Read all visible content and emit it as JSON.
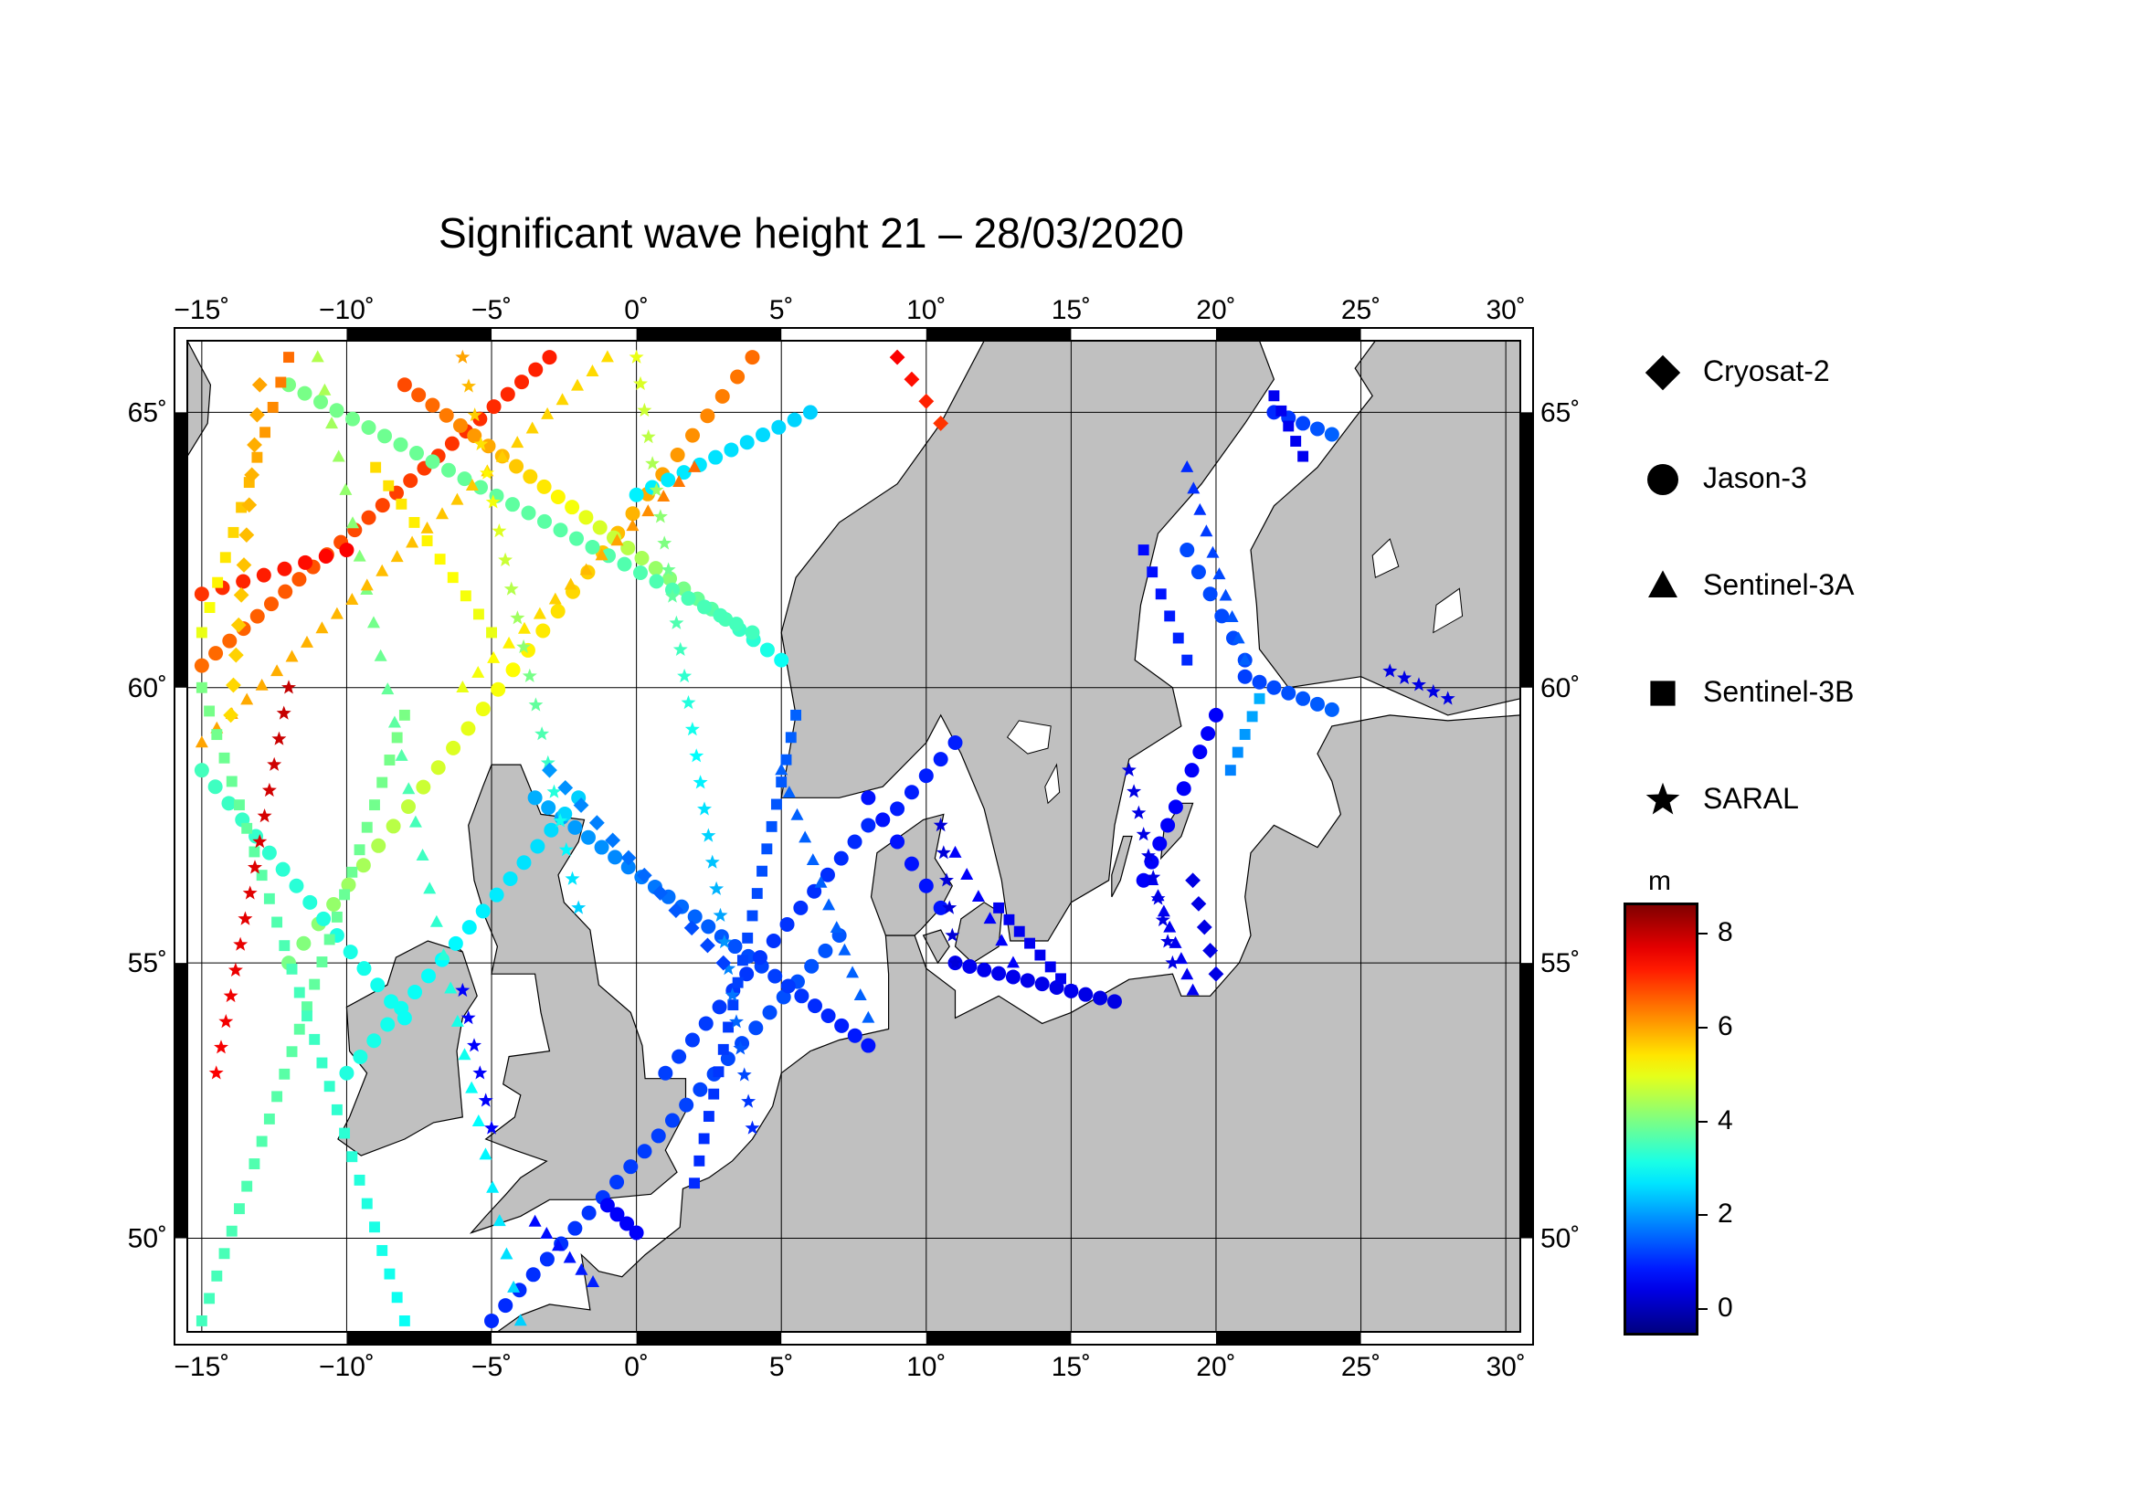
{
  "title": "Significant wave height 21 – 28/03/2020",
  "map": {
    "lon_range": [
      -15.5,
      30.5
    ],
    "lat_range": [
      48.3,
      66.3
    ],
    "lon_ticks": [
      {
        "value": -15,
        "label": "−15˚"
      },
      {
        "value": -10,
        "label": "−10˚"
      },
      {
        "value": -5,
        "label": "−5˚"
      },
      {
        "value": 0,
        "label": "0˚"
      },
      {
        "value": 5,
        "label": "5˚"
      },
      {
        "value": 10,
        "label": "10˚"
      },
      {
        "value": 15,
        "label": "15˚"
      },
      {
        "value": 20,
        "label": "20˚"
      },
      {
        "value": 25,
        "label": "25˚"
      },
      {
        "value": 30,
        "label": "30˚"
      }
    ],
    "lat_ticks": [
      {
        "value": 50,
        "label": "50˚"
      },
      {
        "value": 55,
        "label": "55˚"
      },
      {
        "value": 60,
        "label": "60˚"
      },
      {
        "value": 65,
        "label": "65˚"
      }
    ],
    "land_color": "#c0c0c0",
    "sea_color": "#ffffff",
    "grid": true
  },
  "legend": {
    "items": [
      {
        "label": "Cryosat-2",
        "symbol": "diamond"
      },
      {
        "label": "Jason-3",
        "symbol": "circle"
      },
      {
        "label": "Sentinel-3A",
        "symbol": "triangle"
      },
      {
        "label": "Sentinel-3B",
        "symbol": "square"
      },
      {
        "label": "SARAL",
        "symbol": "star"
      }
    ]
  },
  "colorbar": {
    "unit": "m",
    "min": -0.5,
    "max": 8.6,
    "ticks": [
      {
        "value": 0,
        "label": "0"
      },
      {
        "value": 2,
        "label": "2"
      },
      {
        "value": 4,
        "label": "4"
      },
      {
        "value": 6,
        "label": "6"
      },
      {
        "value": 8,
        "label": "8"
      }
    ]
  },
  "chart_data": {
    "type": "scatter",
    "variable": "Significant wave height",
    "units": "m",
    "series": [
      {
        "name": "Jason-3",
        "symbol": "circle",
        "tracks": [
          {
            "start": [
              -15,
              60.4
            ],
            "end": [
              -3,
              66
            ],
            "n": 26,
            "h0": 6.5,
            "h1": 7.2
          },
          {
            "start": [
              -12,
              55
            ],
            "end": [
              4,
              66
            ],
            "n": 32,
            "h0": 4.0,
            "h1": 6.5
          },
          {
            "start": [
              -8,
              65.5
            ],
            "end": [
              5,
              60.5
            ],
            "n": 28,
            "h0": 6.8,
            "h1": 3.0
          },
          {
            "start": [
              -5,
              48.5
            ],
            "end": [
              7,
              55.5
            ],
            "n": 26,
            "h0": 1.0,
            "h1": 1.4
          },
          {
            "start": [
              -3.5,
              58
            ],
            "end": [
              8,
              53.5
            ],
            "n": 26,
            "h0": 2.2,
            "h1": 0.8
          },
          {
            "start": [
              1,
              53
            ],
            "end": [
              8,
              57.5
            ],
            "n": 16,
            "h0": 1.2,
            "h1": 1.0
          },
          {
            "start": [
              8,
              58
            ],
            "end": [
              10.5,
              56
            ],
            "n": 6,
            "h0": 0.8,
            "h1": 0.8
          },
          {
            "start": [
              -10,
              53
            ],
            "end": [
              -2,
              58
            ],
            "n": 18,
            "h0": 3.2,
            "h1": 2.5
          },
          {
            "start": [
              -15,
              58.5
            ],
            "end": [
              -8,
              54
            ],
            "n": 16,
            "h0": 3.5,
            "h1": 3.0
          },
          {
            "start": [
              -12,
              65.5
            ],
            "end": [
              4,
              61
            ],
            "n": 30,
            "h0": 4.0,
            "h1": 3.5
          },
          {
            "start": [
              0,
              63.5
            ],
            "end": [
              6,
              65
            ],
            "n": 12,
            "h0": 2.8,
            "h1": 2.5
          },
          {
            "start": [
              -15,
              61.7
            ],
            "end": [
              -10,
              62.5
            ],
            "n": 8,
            "h0": 7.0,
            "h1": 7.5
          },
          {
            "start": [
              11,
              55
            ],
            "end": [
              16.5,
              54.3
            ],
            "n": 12,
            "h0": 0.5,
            "h1": 0.4
          },
          {
            "start": [
              17.5,
              56.5
            ],
            "end": [
              20,
              59.5
            ],
            "n": 10,
            "h0": 0.6,
            "h1": 0.6
          },
          {
            "start": [
              22,
              65
            ],
            "end": [
              24,
              64.6
            ],
            "n": 5,
            "h0": 1.0,
            "h1": 1.5
          },
          {
            "start": [
              19,
              62.5
            ],
            "end": [
              21,
              60.5
            ],
            "n": 6,
            "h0": 1.3,
            "h1": 1.3
          },
          {
            "start": [
              21,
              60.2
            ],
            "end": [
              24,
              59.6
            ],
            "n": 7,
            "h0": 1.2,
            "h1": 1.5
          },
          {
            "start": [
              -1,
              50.6
            ],
            "end": [
              0,
              50.1
            ],
            "n": 4,
            "h0": 0.6,
            "h1": 0.6
          },
          {
            "start": [
              9,
              57.8
            ],
            "end": [
              11,
              59
            ],
            "n": 5,
            "h0": 0.9,
            "h1": 0.9
          }
        ]
      },
      {
        "name": "Sentinel-3A",
        "symbol": "triangle",
        "tracks": [
          {
            "start": [
              -11,
              66
            ],
            "end": [
              -4,
              48.5
            ],
            "n": 30,
            "h0": 4.5,
            "h1": 2.5
          },
          {
            "start": [
              -1,
              66
            ],
            "end": [
              -15,
              59
            ],
            "n": 28,
            "h0": 5.5,
            "h1": 6.0
          },
          {
            "start": [
              5,
              58.5
            ],
            "end": [
              8,
              54
            ],
            "n": 12,
            "h0": 1.5,
            "h1": 1.5
          },
          {
            "start": [
              2,
              64
            ],
            "end": [
              -6,
              60
            ],
            "n": 16,
            "h0": 6.5,
            "h1": 5.0
          },
          {
            "start": [
              11,
              57
            ],
            "end": [
              13,
              55
            ],
            "n": 6,
            "h0": 0.6,
            "h1": 0.6
          },
          {
            "start": [
              17.8,
              56.5
            ],
            "end": [
              19.2,
              54.5
            ],
            "n": 8,
            "h0": 0.5,
            "h1": 0.5
          },
          {
            "start": [
              -3.5,
              50.3
            ],
            "end": [
              -1.5,
              49.2
            ],
            "n": 6,
            "h0": 0.7,
            "h1": 0.9
          },
          {
            "start": [
              19,
              64
            ],
            "end": [
              21,
              60.5
            ],
            "n": 10,
            "h0": 1.0,
            "h1": 1.5
          }
        ]
      },
      {
        "name": "Sentinel-3B",
        "symbol": "square",
        "tracks": [
          {
            "start": [
              -15,
              48.5
            ],
            "end": [
              -8,
              59.5
            ],
            "n": 28,
            "h0": 3.5,
            "h1": 4.0
          },
          {
            "start": [
              -8,
              48.5
            ],
            "end": [
              -15,
              60
            ],
            "n": 28,
            "h0": 3.0,
            "h1": 4.0
          },
          {
            "start": [
              2,
              51
            ],
            "end": [
              5.5,
              59.5
            ],
            "n": 22,
            "h0": 1.0,
            "h1": 1.5
          },
          {
            "start": [
              -9,
              64
            ],
            "end": [
              -5,
              61
            ],
            "n": 10,
            "h0": 5.5,
            "h1": 5.0
          },
          {
            "start": [
              -15,
              61
            ],
            "end": [
              -12,
              66
            ],
            "n": 12,
            "h0": 5.0,
            "h1": 6.5
          },
          {
            "start": [
              17.5,
              62.5
            ],
            "end": [
              19,
              60.5
            ],
            "n": 6,
            "h0": 0.7,
            "h1": 1.0
          },
          {
            "start": [
              22,
              65.3
            ],
            "end": [
              23,
              64.2
            ],
            "n": 5,
            "h0": 0.5,
            "h1": 0.5
          },
          {
            "start": [
              20.5,
              58.5
            ],
            "end": [
              21.5,
              59.8
            ],
            "n": 5,
            "h0": 1.8,
            "h1": 2.2
          },
          {
            "start": [
              12.5,
              56
            ],
            "end": [
              15,
              54.5
            ],
            "n": 8,
            "h0": 0.5,
            "h1": 0.5
          }
        ]
      },
      {
        "name": "SARAL",
        "symbol": "star",
        "tracks": [
          {
            "start": [
              -14.5,
              53
            ],
            "end": [
              -12,
              60
            ],
            "n": 16,
            "h0": 7.5,
            "h1": 8.0
          },
          {
            "start": [
              0,
              66
            ],
            "end": [
              4,
              52
            ],
            "n": 30,
            "h0": 5.0,
            "h1": 1.0
          },
          {
            "start": [
              -6,
              66
            ],
            "end": [
              -2,
              56
            ],
            "n": 20,
            "h0": 6.0,
            "h1": 2.5
          },
          {
            "start": [
              10.5,
              57.5
            ],
            "end": [
              11,
              55
            ],
            "n": 6,
            "h0": 0.3,
            "h1": 0.3
          },
          {
            "start": [
              17,
              58.5
            ],
            "end": [
              18.5,
              55
            ],
            "n": 10,
            "h0": 0.4,
            "h1": 0.4
          },
          {
            "start": [
              -6,
              54.5
            ],
            "end": [
              -5,
              52
            ],
            "n": 6,
            "h0": 0.6,
            "h1": 0.6
          },
          {
            "start": [
              26,
              60.3
            ],
            "end": [
              28,
              59.8
            ],
            "n": 5,
            "h0": 0.4,
            "h1": 0.4
          }
        ]
      },
      {
        "name": "Cryosat-2",
        "symbol": "diamond",
        "tracks": [
          {
            "start": [
              -13,
              65.5
            ],
            "end": [
              -14,
              59.5
            ],
            "n": 12,
            "h0": 6.0,
            "h1": 5.5
          },
          {
            "start": [
              9,
              66
            ],
            "end": [
              10.5,
              64.8
            ],
            "n": 4,
            "h0": 7.5,
            "h1": 7.0
          },
          {
            "start": [
              -3,
              58.5
            ],
            "end": [
              3,
              55
            ],
            "n": 12,
            "h0": 2.0,
            "h1": 1.2
          },
          {
            "start": [
              19.2,
              56.5
            ],
            "end": [
              20,
              54.8
            ],
            "n": 5,
            "h0": 0.4,
            "h1": 0.4
          }
        ]
      }
    ]
  }
}
